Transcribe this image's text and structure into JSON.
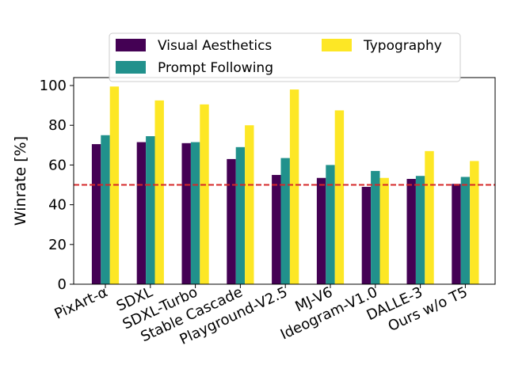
{
  "chart_data": {
    "type": "bar",
    "ylabel": "Winrate [%]",
    "ylim": [
      0,
      104
    ],
    "yticks": [
      0,
      20,
      40,
      60,
      80,
      100
    ],
    "categories": [
      "PixArt-α",
      "SDXL",
      "SDXL-Turbo",
      "Stable Cascade",
      "Playground-V2.5",
      "MJ-V6",
      "Ideogram-V1.0",
      "DALLE-3",
      "Ours w/o T5"
    ],
    "series": [
      {
        "name": "Visual Aesthetics",
        "color": "#440154",
        "values": [
          70.5,
          71.5,
          71.0,
          63.0,
          55.0,
          53.5,
          49.0,
          53.0,
          50.5
        ]
      },
      {
        "name": "Prompt Following",
        "color": "#21918c",
        "values": [
          75.0,
          74.5,
          71.5,
          69.0,
          63.5,
          60.0,
          57.0,
          54.5,
          54.0
        ]
      },
      {
        "name": "Typography",
        "color": "#fde725",
        "values": [
          99.5,
          92.5,
          90.5,
          80.0,
          98.0,
          87.5,
          53.5,
          67.0,
          62.0
        ]
      }
    ],
    "reference_line": {
      "value": 50,
      "color": "#d62728",
      "style": "dashed"
    },
    "legend": {
      "placement": "top",
      "columns": 2
    }
  }
}
